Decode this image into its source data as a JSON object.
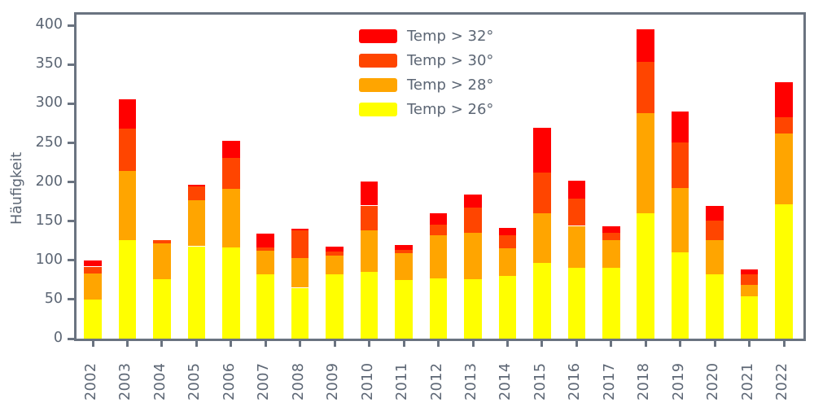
{
  "chart_data": {
    "type": "bar",
    "stacked": true,
    "title": "",
    "xlabel": "",
    "ylabel": "Häufigkeit",
    "categories": [
      "2002",
      "2003",
      "2004",
      "2005",
      "2006",
      "2007",
      "2008",
      "2009",
      "2010",
      "2011",
      "2012",
      "2013",
      "2014",
      "2015",
      "2016",
      "2017",
      "2018",
      "2019",
      "2020",
      "2021",
      "2022"
    ],
    "series": [
      {
        "name": "Temp > 26°",
        "color": "#ffff00",
        "values": [
          50,
          126,
          76,
          118,
          116,
          82,
          65,
          82,
          85,
          75,
          77,
          76,
          80,
          97,
          91,
          90,
          160,
          110,
          82,
          54,
          172
        ]
      },
      {
        "name": "Temp > 28°",
        "color": "#ffa500",
        "values": [
          33,
          88,
          46,
          59,
          75,
          30,
          38,
          24,
          53,
          34,
          55,
          59,
          35,
          63,
          53,
          36,
          128,
          82,
          44,
          15,
          90
        ]
      },
      {
        "name": "Temp > 30°",
        "color": "#ff4500",
        "values": [
          9,
          54,
          4,
          17,
          40,
          4,
          35,
          5,
          32,
          4,
          14,
          32,
          17,
          52,
          35,
          9,
          65,
          59,
          25,
          13,
          21
        ]
      },
      {
        "name": "Temp > 32°",
        "color": "#ff0000",
        "values": [
          8,
          38,
          0,
          3,
          22,
          18,
          2,
          7,
          31,
          7,
          14,
          17,
          9,
          57,
          23,
          9,
          42,
          39,
          18,
          6,
          44
        ]
      }
    ],
    "totals": [
      100,
      306,
      126,
      197,
      253,
      134,
      140,
      118,
      201,
      120,
      160,
      184,
      141,
      269,
      202,
      144,
      395,
      290,
      169,
      88,
      327
    ],
    "y_ticks": [
      0,
      50,
      100,
      150,
      200,
      250,
      300,
      350,
      400
    ],
    "ylim": [
      0,
      416
    ],
    "grid": false,
    "legend": {
      "frame": false,
      "position": "upper center-left, inside plot",
      "entries_top_to_bottom": [
        "Temp > 32°",
        "Temp > 30°",
        "Temp > 28°",
        "Temp > 26°"
      ]
    },
    "colors": {
      "red": "#ff0000",
      "orangered": "#ff4500",
      "orange": "#ffa500",
      "yellow": "#ffff00",
      "axis_text": "#5c6674",
      "spine": "#6a7380"
    }
  }
}
